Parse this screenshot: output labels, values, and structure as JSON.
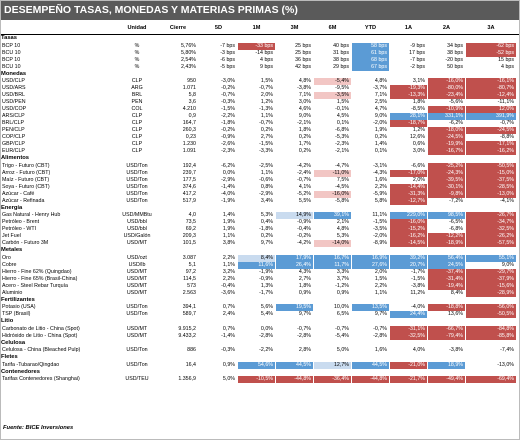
{
  "title": "DESEMPEÑO TASAS, MONEDAS Y MATERIAS PRIMAS (%)",
  "headers": {
    "unidad": "Unidad",
    "cierre": "Cierre",
    "p": [
      "5D",
      "1M",
      "3M",
      "6M",
      "YTD",
      "1A",
      "2A",
      "3A"
    ]
  },
  "colors": {
    "red": "#c0504d",
    "lightred": "#f2c6c4",
    "blue": "#5b9bd5",
    "lightblue": "#c9dbef"
  },
  "footer": "Fuente: BICE Inversiones",
  "rows": [
    {
      "section": "Tasas"
    },
    {
      "name": "BCP 10",
      "unit": "%",
      "cierre": "5,76%",
      "v": [
        "-7 bps",
        "-33 bps",
        "25 bps",
        "40 bps",
        "58 bps",
        "-9 bps",
        "34 bps",
        "-62 bps"
      ],
      "c": [
        "",
        "r",
        "",
        "",
        "b",
        "",
        "",
        "r"
      ]
    },
    {
      "name": "BCU 10",
      "unit": "%",
      "cierre": "5,80%",
      "v": [
        "-3 bps",
        "-14 bps",
        "25 bps",
        "31 bps",
        "61 bps",
        "17 bps",
        "38 bps",
        "-52 bps"
      ],
      "c": [
        "",
        "",
        "",
        "",
        "b",
        "",
        "",
        "r"
      ]
    },
    {
      "name": "BCP 10",
      "unit": "%",
      "cierre": "2,54%",
      "v": [
        "-6 bps",
        "4 bps",
        "36 bps",
        "38 bps",
        "68 bps",
        "-7 bps",
        "-20 bps",
        "15 bps"
      ],
      "c": [
        "",
        "",
        "",
        "",
        "b",
        "",
        "",
        ""
      ]
    },
    {
      "name": "BCU 10",
      "unit": "%",
      "cierre": "2,43%",
      "v": [
        "-5 bps",
        "9 bps",
        "42 bps",
        "29 bps",
        "67 bps",
        "-2 bps",
        "50 bps",
        "4 bps"
      ],
      "c": [
        "",
        "",
        "",
        "",
        "b",
        "",
        "",
        ""
      ]
    },
    {
      "section": "Monedas"
    },
    {
      "name": "USD/CLP",
      "unit": "CLP",
      "cierre": "950",
      "v": [
        "-3,0%",
        "1,5%",
        "4,8%",
        "-5,4%",
        "4,8%",
        "3,1%",
        "-16,0%",
        "-16,1%"
      ],
      "c": [
        "",
        "",
        "",
        "lr",
        "",
        "",
        "r",
        "r"
      ]
    },
    {
      "name": "USD/ARS",
      "unit": "ARG",
      "cierre": "1.071",
      "v": [
        "-0,2%",
        "-0,7%",
        "-3,8%",
        "-9,5%",
        "-3,7%",
        "-19,3%",
        "-80,0%",
        "-80,7%"
      ],
      "c": [
        "",
        "",
        "",
        "",
        "",
        "r",
        "r",
        "r"
      ]
    },
    {
      "name": "USD/BRL",
      "unit": "BRL",
      "cierre": "5,8",
      "v": [
        "-0,7%",
        "2,0%",
        "7,1%",
        "-3,5%",
        "7,1%",
        "-13,3%",
        "-23,4%",
        "-12,4%"
      ],
      "c": [
        "",
        "",
        "",
        "lr",
        "",
        "r",
        "r",
        "r"
      ]
    },
    {
      "name": "USD/PEN",
      "unit": "PEN",
      "cierre": "3,6",
      "v": [
        "-0,3%",
        "1,2%",
        "3,0%",
        "1,5%",
        "2,5%",
        "1,8%",
        "-5,6%",
        "-11,1%"
      ],
      "c": [
        "",
        "",
        "",
        "",
        "",
        "",
        "",
        ""
      ]
    },
    {
      "name": "USD/COP",
      "unit": "COL",
      "cierre": "4.210",
      "v": [
        "-1,5%",
        "-1,3%",
        "4,6%",
        "-0,1%",
        "4,7%",
        "-8,5%",
        "-10,9%",
        "12,0%"
      ],
      "c": [
        "",
        "",
        "",
        "",
        "",
        "",
        "r",
        "r"
      ]
    },
    {
      "name": "ARS/CLP",
      "unit": "CLP",
      "cierre": "0,9",
      "v": [
        "-2,2%",
        "1,1%",
        "9,0%",
        "4,5%",
        "9,0%",
        "28,1%",
        "331,1%",
        "391,9%"
      ],
      "c": [
        "",
        "",
        "",
        "",
        "",
        "b",
        "b",
        "b"
      ]
    },
    {
      "name": "BRL/CLP",
      "unit": "CLP",
      "cierre": "164,7",
      "v": [
        "-1,8%",
        "-0,7%",
        "-2,1%",
        "0,1%",
        "-2,0%",
        "-18,7%",
        "-6,2%",
        "-0,7%"
      ],
      "c": [
        "",
        "",
        "",
        "",
        "",
        "r",
        "",
        ""
      ]
    },
    {
      "name": "PEN/CLP",
      "unit": "CLP",
      "cierre": "260,3",
      "v": [
        "-0,2%",
        "0,2%",
        "1,8%",
        "-6,8%",
        "1,9%",
        "1,2%",
        "-18,0%",
        "-24,5%"
      ],
      "c": [
        "",
        "",
        "",
        "",
        "",
        "",
        "r",
        "r"
      ]
    },
    {
      "name": "COP/CLP",
      "unit": "CLP",
      "cierre": "0,23",
      "v": [
        "-0,9%",
        "2,7%",
        "0,2%",
        "-5,3%",
        "0,2%",
        "12,6%",
        "-24,5%",
        "-8,8%"
      ],
      "c": [
        "",
        "",
        "",
        "",
        "",
        "",
        "r",
        ""
      ]
    },
    {
      "name": "GBP/CLP",
      "unit": "CLP",
      "cierre": "1.230",
      "v": [
        "-2,6%",
        "-1,5%",
        "1,7%",
        "-2,3%",
        "1,4%",
        "0,6%",
        "-19,9%",
        "-17,1%"
      ],
      "c": [
        "",
        "",
        "",
        "",
        "",
        "",
        "r",
        "r"
      ]
    },
    {
      "name": "EUR/CLP",
      "unit": "CLP",
      "cierre": "1.091",
      "v": [
        "-2,3%",
        "-3,3%",
        "0,2%",
        "-2,1%",
        "0,1%",
        "3,0%",
        "-16,7%",
        "-16,2%"
      ],
      "c": [
        "",
        "",
        "",
        "",
        "",
        "",
        "r",
        "r"
      ]
    },
    {
      "section": "Alimentos"
    },
    {
      "name": "Trigo - Futuro (CBT)",
      "unit": "USD/Ton",
      "cierre": "192,4",
      "v": [
        "-6,2%",
        "-2,5%",
        "-4,2%",
        "-4,7%",
        "-3,1%",
        "-6,6%",
        "-25,2%",
        "-50,5%"
      ],
      "c": [
        "",
        "",
        "",
        "",
        "",
        "",
        "r",
        "r"
      ]
    },
    {
      "name": "Arroz - Futuro (CBT)",
      "unit": "USD/Ton",
      "cierre": "239,7",
      "v": [
        "0,0%",
        "1,1%",
        "-2,4%",
        "-11,0%",
        "-4,3%",
        "-17,0%",
        "-24,3%",
        "-15,0%"
      ],
      "c": [
        "",
        "",
        "",
        "lr",
        "",
        "r",
        "r",
        "r"
      ]
    },
    {
      "name": "Maíz - Futuro (CBT)",
      "unit": "USD/Ton",
      "cierre": "177,5",
      "v": [
        "-2,9%",
        "-0,6%",
        "-0,7%",
        "7,5%",
        "1,6%",
        "2,0%",
        "-39,5%",
        "-37,5%"
      ],
      "c": [
        "",
        "",
        "",
        "",
        "",
        "",
        "r",
        "r"
      ]
    },
    {
      "name": "Soya - Futuro (CBT)",
      "unit": "USD/Ton",
      "cierre": "374,6",
      "v": [
        "-1,4%",
        "0,8%",
        "4,1%",
        "-4,5%",
        "2,2%",
        "-14,4%",
        "-30,1%",
        "-28,5%"
      ],
      "c": [
        "",
        "",
        "",
        "",
        "",
        "r",
        "r",
        "r"
      ]
    },
    {
      "name": "Azúcar - Café",
      "unit": "USD/Ton",
      "cierre": "417,2",
      "v": [
        "-4,0%",
        "-2,9%",
        "-5,2%",
        "-16,0%",
        "-5,9%",
        "-31,3%",
        "-9,8%",
        "-13,0%"
      ],
      "c": [
        "",
        "",
        "",
        "lr",
        "",
        "r",
        "r",
        "r"
      ]
    },
    {
      "name": "Azúcar - Refinada",
      "unit": "USD/Ton",
      "cierre": "517,9",
      "v": [
        "-1,9%",
        "3,4%",
        "5,5%",
        "-5,8%",
        "5,8%",
        "-12,7%",
        "-7,2%",
        "-4,1%"
      ],
      "c": [
        "",
        "",
        "",
        "",
        "",
        "r",
        "",
        ""
      ]
    },
    {
      "section": "Energía"
    },
    {
      "name": "Gas Natural - Henry Hub",
      "unit": "USD/MMBtu",
      "cierre": "4,0",
      "v": [
        "1,4%",
        "5,3%",
        "14,9%",
        "39,1%",
        "11,1%",
        "229,0%",
        "98,5%",
        "-26,7%"
      ],
      "c": [
        "",
        "",
        "lb",
        "b",
        "",
        "b",
        "b",
        "r"
      ]
    },
    {
      "name": "Petróleo - Brent",
      "unit": "USD/bbl",
      "cierre": "73,5",
      "v": [
        "1,9%",
        "0,4%",
        "-0,9%",
        "2,1%",
        "-1,5%",
        "-16,0%",
        "-6,5%",
        "-34,7%"
      ],
      "c": [
        "",
        "",
        "",
        "",
        "",
        "r",
        "",
        "r"
      ]
    },
    {
      "name": "Petróleo - WTI",
      "unit": "USD/bbl",
      "cierre": "69,2",
      "v": [
        "1,9%",
        "-1,8%",
        "-0,4%",
        "4,8%",
        "-3,5%",
        "-15,2%",
        "-6,8%",
        "-32,5%"
      ],
      "c": [
        "",
        "",
        "",
        "",
        "",
        "r",
        "",
        "r"
      ]
    },
    {
      "name": "Jet Fuel",
      "unit": "USD/Galón",
      "cierre": "209,3",
      "v": [
        "1,1%",
        "0,2%",
        "-0,2%",
        "5,3%",
        "-2,0%",
        "-16,2%",
        "-12,2%",
        "-26,2%"
      ],
      "c": [
        "",
        "",
        "",
        "",
        "",
        "r",
        "r",
        "r"
      ]
    },
    {
      "name": "Carbón - Futuro 3M",
      "unit": "USD/MT",
      "cierre": "101,5",
      "v": [
        "3,8%",
        "9,7%",
        "-4,2%",
        "-14,0%",
        "-8,9%",
        "-14,5%",
        "-18,9%",
        "-57,5%"
      ],
      "c": [
        "",
        "",
        "",
        "lr",
        "",
        "r",
        "r",
        "r"
      ]
    },
    {
      "section": "Metales"
    },
    {
      "name": "Oro",
      "unit": "USD/ozt",
      "cierre": "3.087",
      "v": [
        "2,2%",
        "8,4%",
        "17,9%",
        "16,7%",
        "16,9%",
        "39,2%",
        "56,4%",
        "55,1%"
      ],
      "c": [
        "",
        "lb",
        "b",
        "b",
        "b",
        "b",
        "b",
        "b"
      ]
    },
    {
      "name": "Cobre",
      "unit": "USD/lb",
      "cierre": "5,1",
      "v": [
        "1,1%",
        "11,6%",
        "26,4%",
        "11,7%",
        "27,6%",
        "20,7%",
        "24,5%",
        "9,0%"
      ],
      "c": [
        "",
        "b",
        "b",
        "b",
        "b",
        "b",
        "b",
        ""
      ]
    },
    {
      "name": "Hierro - Fine 62% (Quingdao)",
      "unit": "USD/MT",
      "cierre": "97,2",
      "v": [
        "3,2%",
        "-1,9%",
        "4,3%",
        "3,3%",
        "2,0%",
        "-1,7%",
        "-37,4%",
        "-29,7%"
      ],
      "c": [
        "",
        "",
        "",
        "",
        "",
        "",
        "r",
        "r"
      ]
    },
    {
      "name": "Hierro - Fine 65% (Brasil-China)",
      "unit": "USD/MT",
      "cierre": "114,5",
      "v": [
        "2,2%",
        "-0,9%",
        "2,7%",
        "3,7%",
        "1,5%",
        "-1,5%",
        "-31,4%",
        "-37,9%"
      ],
      "c": [
        "",
        "",
        "",
        "",
        "",
        "",
        "r",
        "r"
      ]
    },
    {
      "name": "Acero - Steel Rebar Turquía",
      "unit": "USD/MT",
      "cierre": "573",
      "v": [
        "-0,4%",
        "1,3%",
        "1,8%",
        "-1,2%",
        "2,2%",
        "-3,8%",
        "-19,4%",
        "-15,6%"
      ],
      "c": [
        "",
        "",
        "",
        "",
        "",
        "",
        "r",
        "r"
      ]
    },
    {
      "name": "Aluminio",
      "unit": "USD/MT",
      "cierre": "2.563",
      "v": [
        "-3,6%",
        "-1,7%",
        "0,9%",
        "0,9%",
        "1,1%",
        "11,2%",
        "8,4%",
        "-28,9%"
      ],
      "c": [
        "",
        "",
        "",
        "",
        "",
        "",
        "",
        "r"
      ]
    },
    {
      "section": "Fertilizantes"
    },
    {
      "name": "Potasio (USA)",
      "unit": "USD/Ton",
      "cierre": "394,1",
      "v": [
        "0,7%",
        "5,6%",
        "19,5%",
        "10,0%",
        "13,5%",
        "-4,0%",
        "-18,8%",
        "-56,0%"
      ],
      "c": [
        "",
        "",
        "b",
        "",
        "b",
        "",
        "r",
        "r"
      ]
    },
    {
      "name": "TSP (Brasil)",
      "unit": "USD/Ton",
      "cierre": "589,7",
      "v": [
        "2,4%",
        "5,4%",
        "9,7%",
        "6,5%",
        "9,7%",
        "24,4%",
        "13,6%",
        "-50,5%"
      ],
      "c": [
        "",
        "",
        "",
        "",
        "",
        "b",
        "",
        "r"
      ]
    },
    {
      "section": "Litio"
    },
    {
      "name": "Carbonato de Litio - China (Spot)",
      "unit": "USD/MT",
      "cierre": "9.915,2",
      "v": [
        "0,7%",
        "0,0%",
        "-0,7%",
        "-0,7%",
        "-0,7%",
        "-31,1%",
        "-66,7%",
        "-84,8%"
      ],
      "c": [
        "",
        "",
        "",
        "",
        "",
        "r",
        "r",
        "r"
      ]
    },
    {
      "name": "Hidróxido de Litio - China (Spot)",
      "unit": "USD/MT",
      "cierre": "9.433,2",
      "v": [
        "-1,4%",
        "-2,8%",
        "-2,8%",
        "-5,4%",
        "-2,8%",
        "-32,5%",
        "-79,4%",
        "-85,8%"
      ],
      "c": [
        "",
        "",
        "",
        "",
        "",
        "r",
        "r",
        "r"
      ]
    },
    {
      "section": "Celulosa"
    },
    {
      "name": "Celulosa - China (Bleached Pulp)",
      "unit": "USD/Ton",
      "cierre": "886",
      "v": [
        "-0,3%",
        "-2,2%",
        "2,8%",
        "5,0%",
        "1,6%",
        "4,0%",
        "-3,8%",
        "-7,4%"
      ],
      "c": [
        "",
        "",
        "",
        "",
        "",
        "",
        "",
        ""
      ]
    },
    {
      "section": "Fletes"
    },
    {
      "name": "Tarifa -Tubarao/Qingdao",
      "unit": "USD/Ton",
      "cierre": "16,4",
      "v": [
        "0,9%",
        "54,6%",
        "44,5%",
        "12,7%",
        "44,5%",
        "-21,0%",
        "18,9%",
        "-13,0%"
      ],
      "c": [
        "",
        "b",
        "b",
        "lb",
        "b",
        "r",
        "b",
        ""
      ]
    },
    {
      "section": "Contenedores"
    },
    {
      "name": "Tarifas Contenedores (Shanghai)",
      "unit": "USD/TEU",
      "cierre": "1.356,9",
      "v": [
        "5,0%",
        "-10,5%",
        "-44,8%",
        "-36,4%",
        "-44,8%",
        "-21,7%",
        "-49,4%",
        "-69,4%"
      ],
      "c": [
        "",
        "r",
        "r",
        "r",
        "r",
        "r",
        "r",
        "r"
      ]
    }
  ]
}
